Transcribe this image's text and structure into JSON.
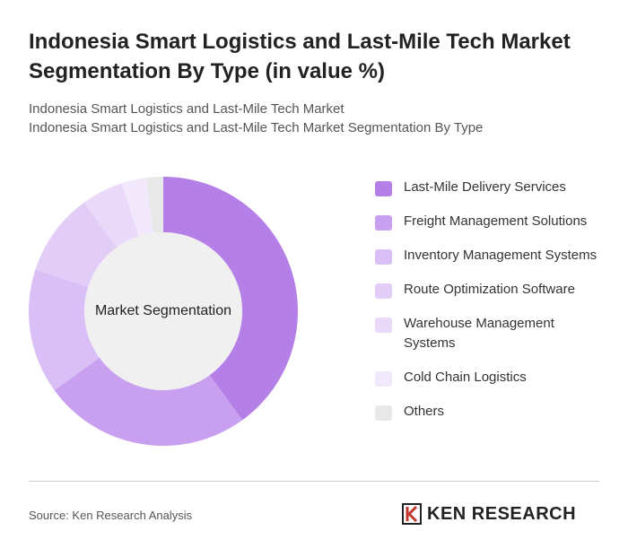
{
  "chart_data": {
    "type": "donut",
    "title": "Indonesia Smart Logistics and Last-Mile Tech Market Segmentation By Type (in value %)",
    "subtitle_lines": [
      "Indonesia Smart Logistics and Last-Mile Tech Market",
      "Indonesia Smart Logistics and Last-Mile Tech Market Segmentation By Type"
    ],
    "center_label": "Market Segmentation",
    "categories": [
      "Last-Mile Delivery Services",
      "Freight Management Solutions",
      "Inventory Management Systems",
      "Route Optimization Software",
      "Warehouse Management Systems",
      "Cold Chain Logistics",
      "Others"
    ],
    "values": [
      40,
      25,
      15,
      10,
      5,
      3,
      2
    ],
    "colors": [
      "#b57fe8",
      "#c9a0f0",
      "#d9bff5",
      "#e2cdf7",
      "#ead9f9",
      "#f1e9fb",
      "#e8e8e8"
    ],
    "source": "Source: Ken Research Analysis",
    "brand": "KEN RESEARCH"
  }
}
